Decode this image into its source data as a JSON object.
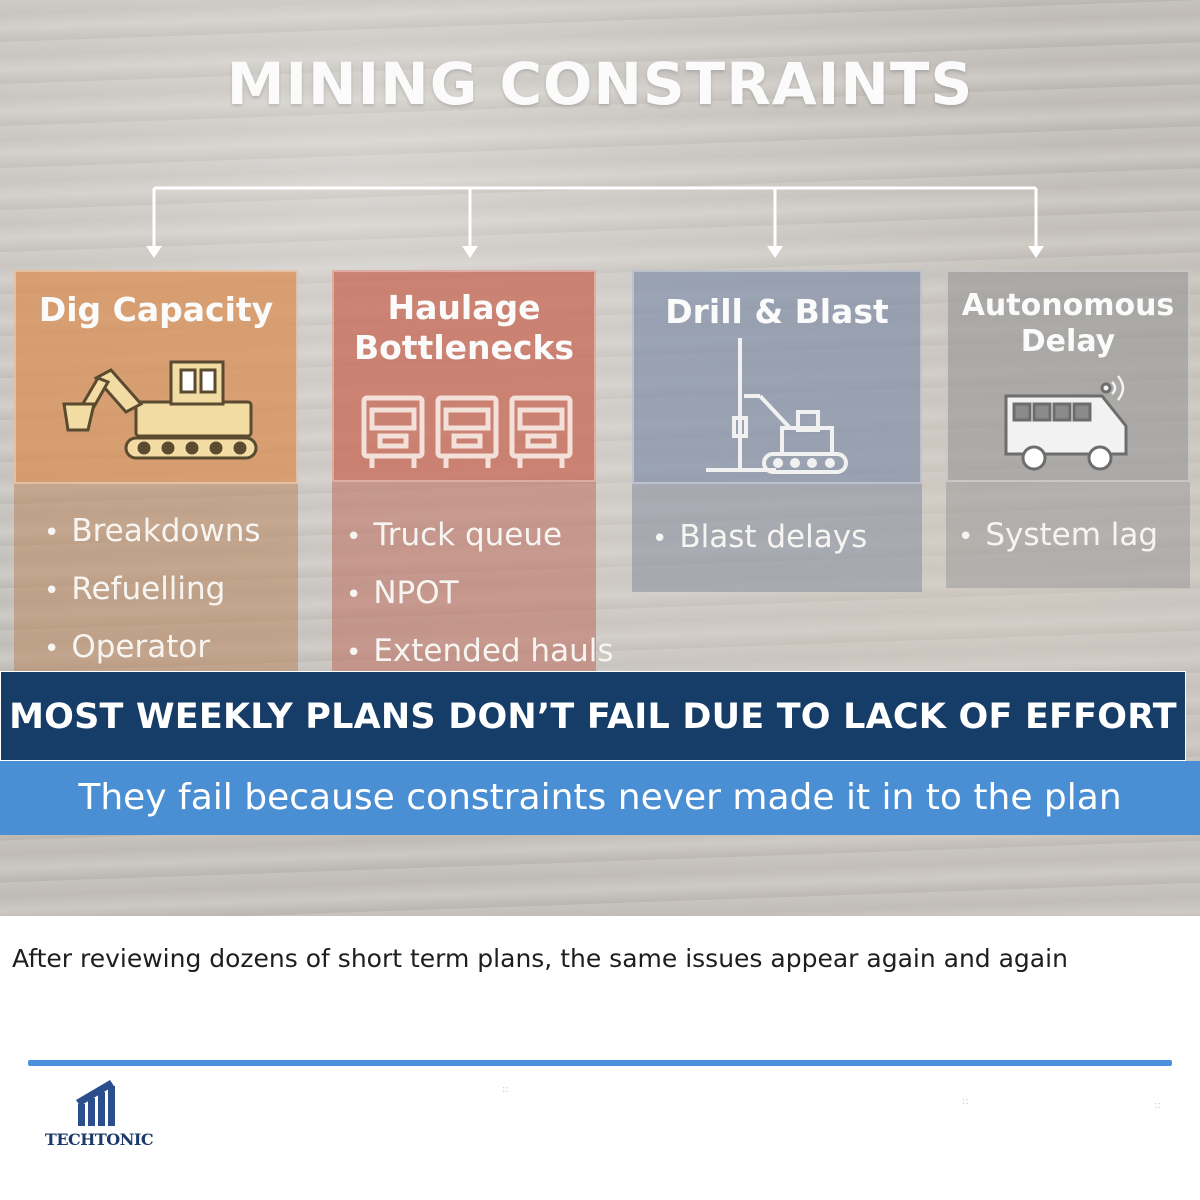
{
  "title": "MINING CONSTRAINTS",
  "cards": [
    {
      "id": "dig",
      "title_lines": [
        "Dig Capacity"
      ],
      "icon": "excavator-icon",
      "bullets": [
        "Breakdowns",
        "Refuelling",
        "Operator"
      ],
      "color": "#d98c50"
    },
    {
      "id": "haul",
      "title_lines": [
        "Haulage",
        "Bottlenecks"
      ],
      "icon": "haul-trucks-icon",
      "bullets": [
        "Truck queue",
        "NPOT",
        "Extended hauls"
      ],
      "color": "#c86450"
    },
    {
      "id": "drill",
      "title_lines": [
        "Drill & Blast"
      ],
      "icon": "drill-rig-icon",
      "bullets": [
        "Blast delays"
      ],
      "color": "#7887a5"
    },
    {
      "id": "auto",
      "title_lines": [
        "Autonomous",
        "Delay"
      ],
      "icon": "autonomous-vehicle-icon",
      "bullets": [
        "System lag"
      ],
      "color": "#969696"
    }
  ],
  "banner": {
    "headline": "MOST WEEKLY PLANS DON’T FAIL DUE TO LACK OF EFFORT",
    "subline": "They fail because constraints never made it in to the plan"
  },
  "caption": "After reviewing dozens of short term plans, the same issues appear again and again",
  "logo": {
    "name": "TECHTONIC",
    "icon": "building-chart-logo-icon"
  },
  "colors": {
    "banner_dark": "#163c68",
    "banner_light": "#4a8fd3",
    "divider": "#4a90dc"
  }
}
